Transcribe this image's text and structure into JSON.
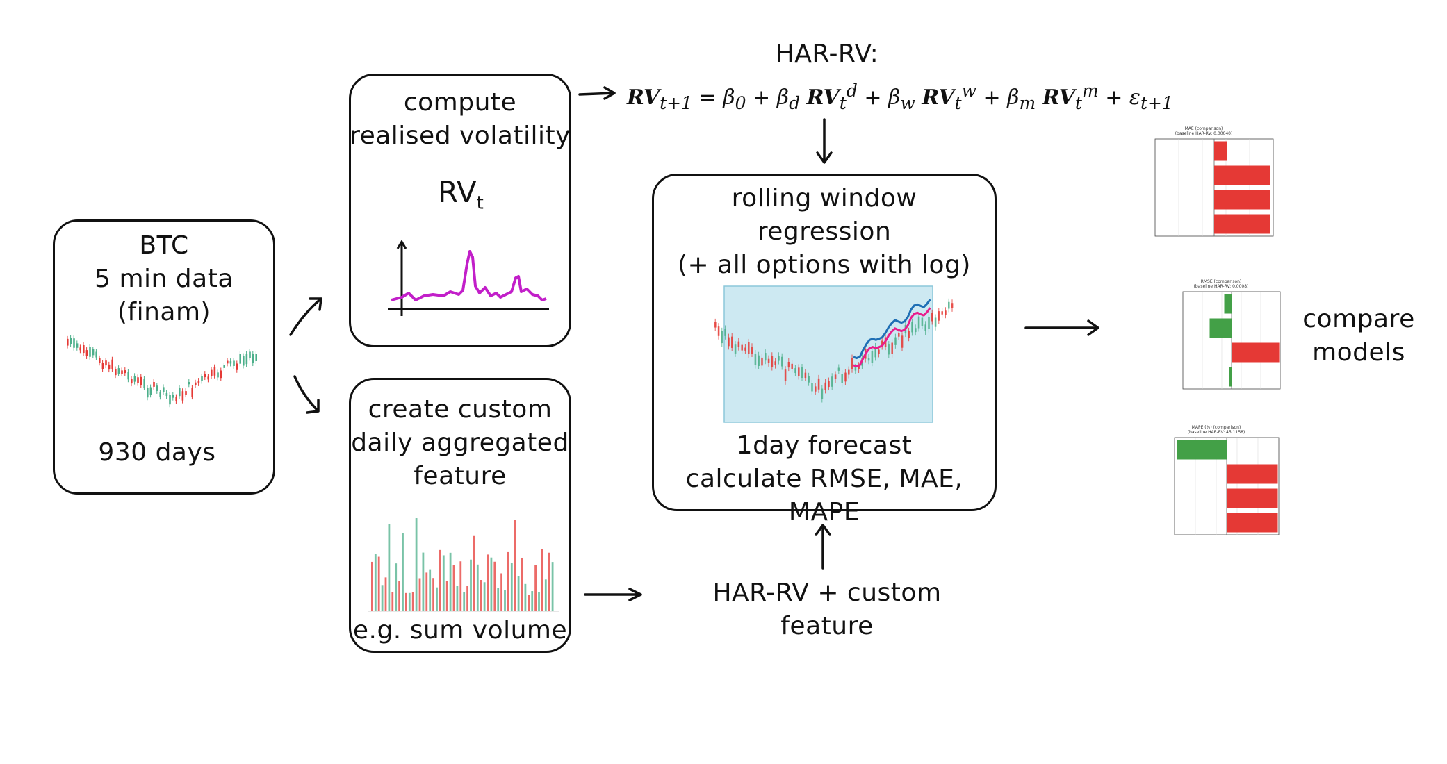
{
  "btc_box": {
    "title": "BTC",
    "line2": "5 min data",
    "line3": "(finam)",
    "footer": "930 days"
  },
  "rv_box": {
    "line1": "compute",
    "line2": "realised volatility",
    "symbol": "RV",
    "symbol_sub": "t"
  },
  "custom_box": {
    "line1": "create custom",
    "line2": "daily aggregated",
    "line3": "feature",
    "footer": "e.g. sum volume"
  },
  "har": {
    "label": "HAR-RV:",
    "equation": "RVt+1 = β0 + βd RVtd + βw RVtw + βm RVtm + εt+1"
  },
  "rolling_box": {
    "line1": "rolling window",
    "line2": "regression",
    "line3": "(+ all options with log)",
    "line4": "1day forecast",
    "line5": "calculate RMSE, MAE, MAPE"
  },
  "har_custom": {
    "label": "HAR-RV + custom feature"
  },
  "compare": {
    "line1": "compare",
    "line2": "models"
  },
  "mini_charts": [
    {
      "title": "MAE (comparison)",
      "subtitle": "(baseline HAR-RV: 0.00040)",
      "colors": [
        "#e53935",
        "#e53935",
        "#e53935",
        "#e53935"
      ]
    },
    {
      "title": "RMSE (comparison)",
      "subtitle": "(baseline HAR-RV: 0.0008)",
      "colors": [
        "#43a047",
        "#43a047",
        "#e53935",
        "#43a047"
      ]
    },
    {
      "title": "MAPE (%) (comparison)",
      "subtitle": "(baseline HAR-RV: 45.1158)",
      "colors": [
        "#43a047",
        "#e53935",
        "#e53935",
        "#e53935"
      ]
    }
  ],
  "colors": {
    "stroke": "#111111",
    "rv_line": "#c21fc9",
    "up": "#4caf8a",
    "down": "#e53935",
    "forecast_blue": "#1f6fb5",
    "forecast_pink": "#e91e8c",
    "window_fill": "#cde9f2"
  }
}
